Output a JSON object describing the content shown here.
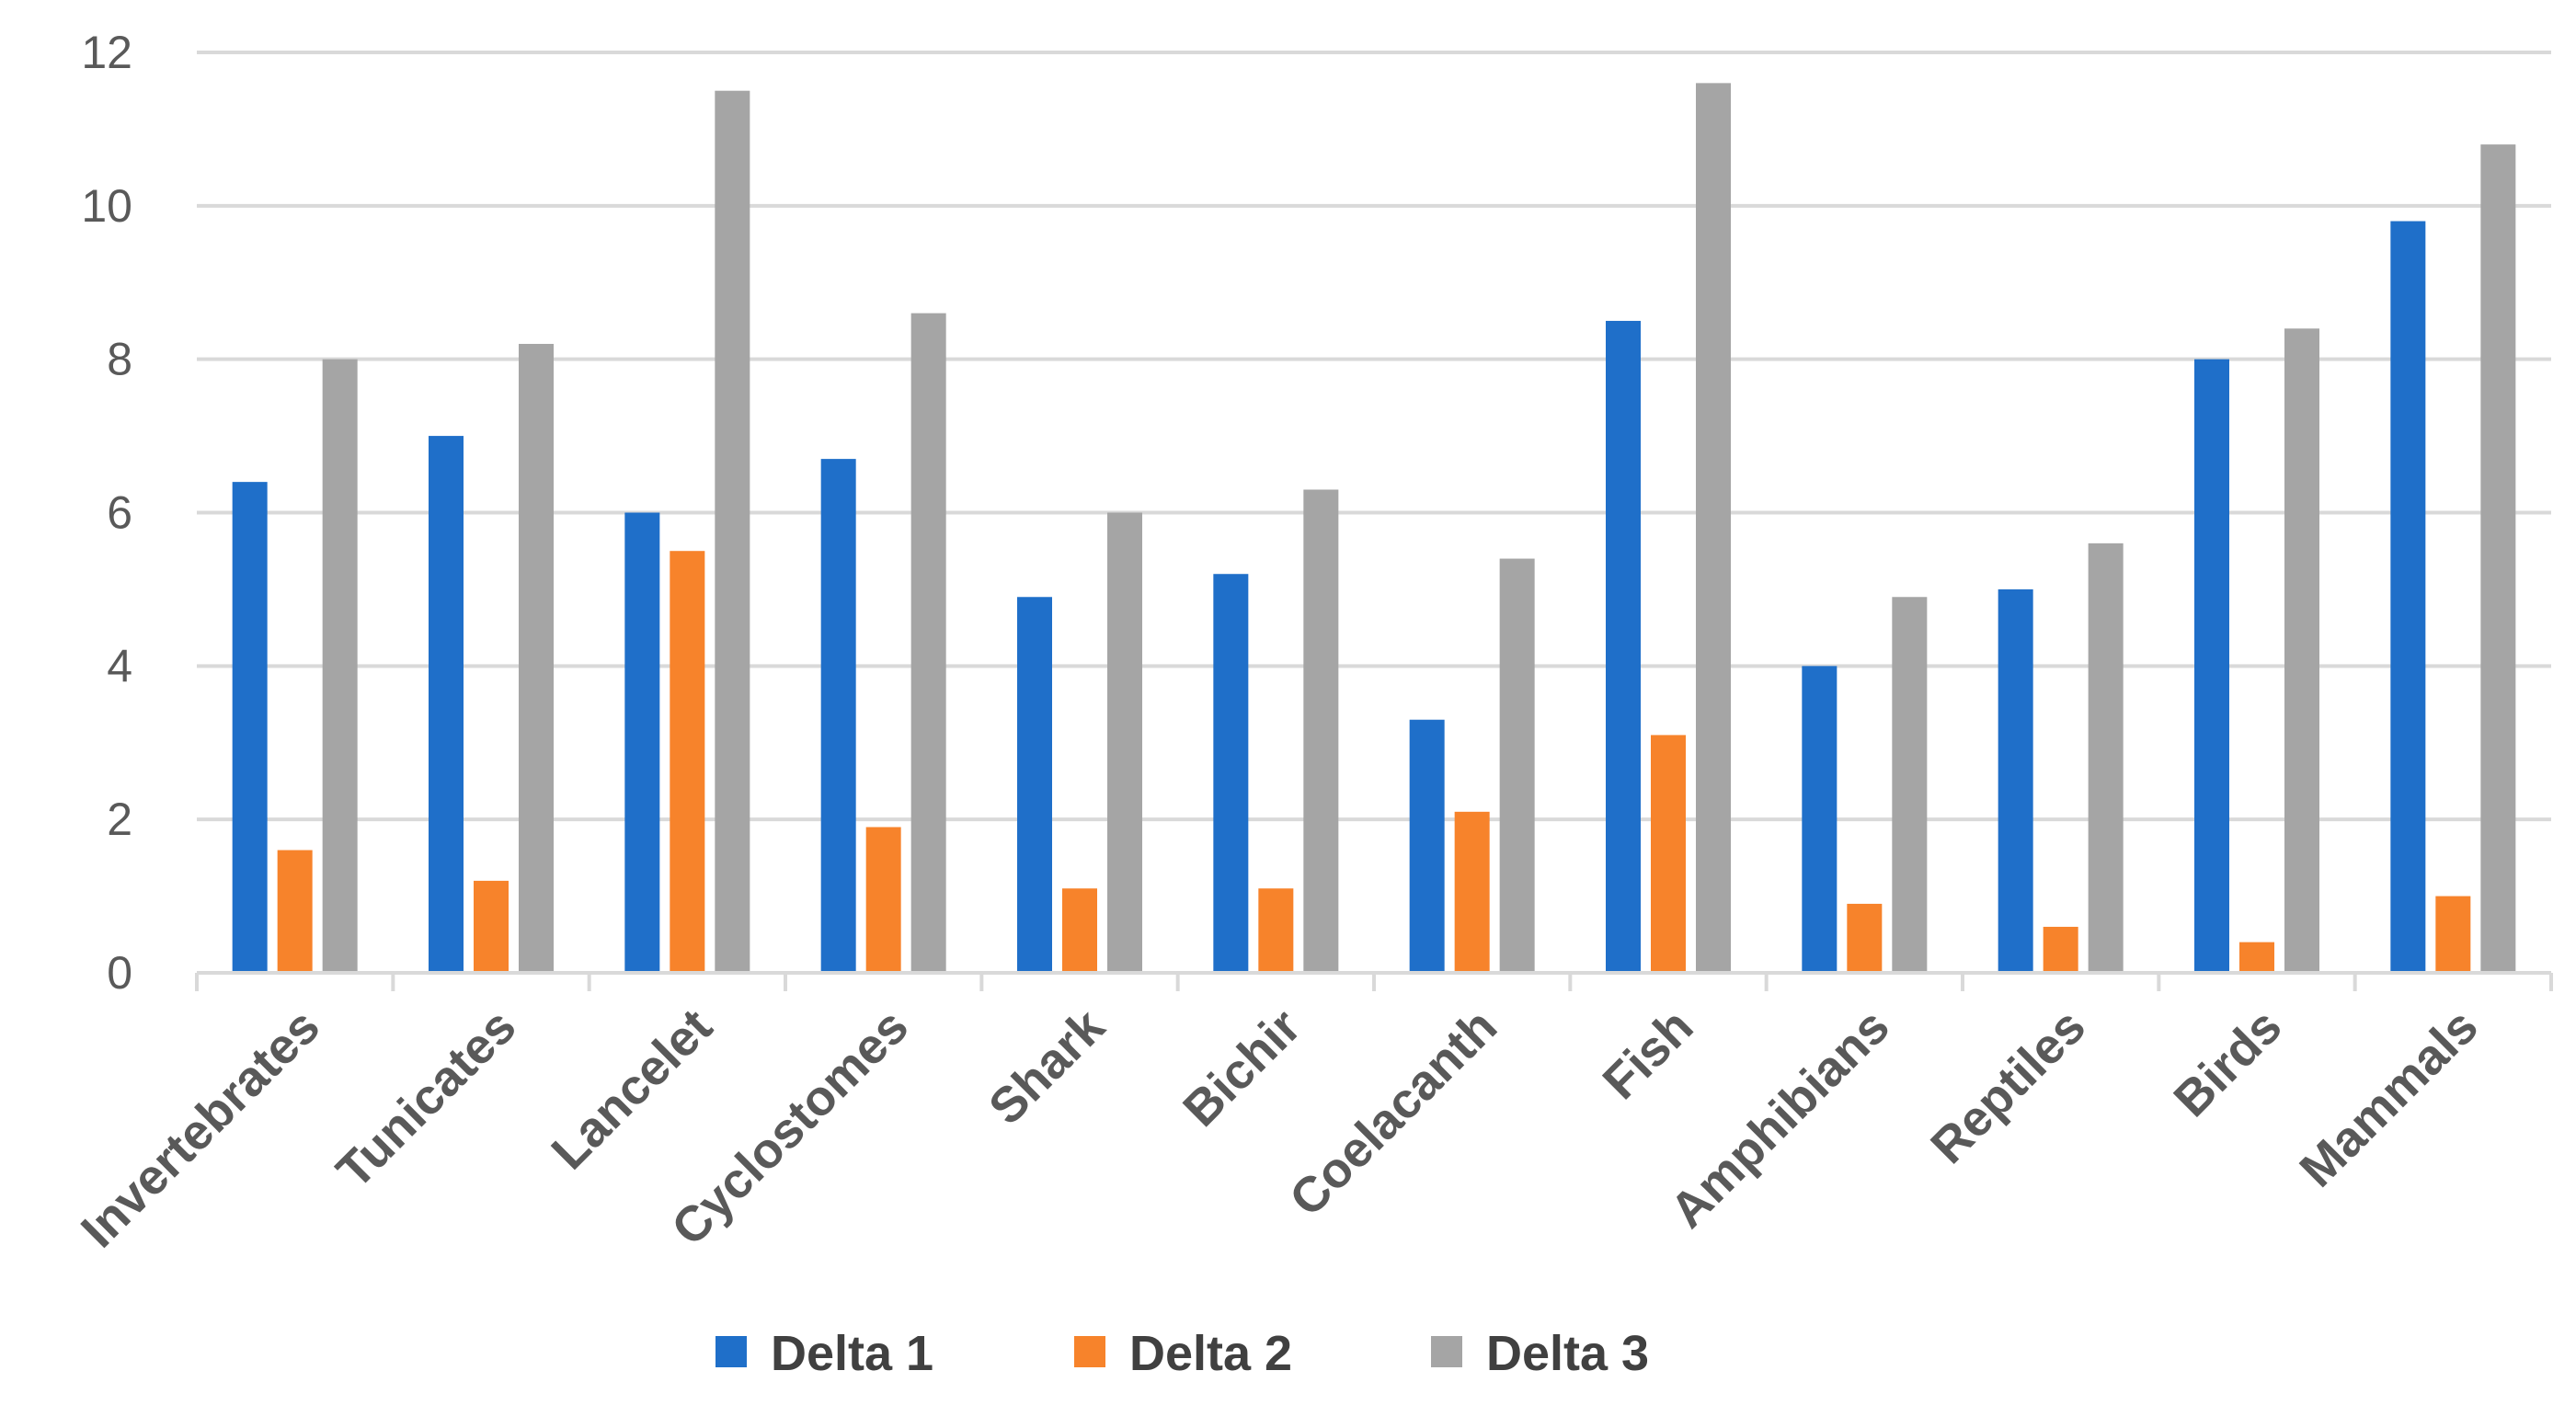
{
  "chart_data": {
    "type": "bar",
    "title": "",
    "xlabel": "",
    "ylabel": "",
    "ylim": [
      0,
      12
    ],
    "yticks": [
      0,
      2,
      4,
      6,
      8,
      10,
      12
    ],
    "grid": true,
    "legend_position": "bottom",
    "categories": [
      "Invertebrates",
      "Tunicates",
      "Lancelet",
      "Cyclostomes",
      "Shark",
      "Bichir",
      "Coelacanth",
      "Fish",
      "Amphibians",
      "Reptiles",
      "Birds",
      "Mammals"
    ],
    "series": [
      {
        "name": "Delta 1",
        "color": "#1f6fc9",
        "values": [
          6.4,
          7.0,
          6.0,
          6.7,
          4.9,
          5.2,
          3.3,
          8.5,
          4.0,
          5.0,
          8.0,
          9.8
        ]
      },
      {
        "name": "Delta 2",
        "color": "#f7832b",
        "values": [
          1.6,
          1.2,
          5.5,
          1.9,
          1.1,
          1.1,
          2.1,
          3.1,
          0.9,
          0.6,
          0.4,
          1.0
        ]
      },
      {
        "name": "Delta 3",
        "color": "#a5a5a5",
        "values": [
          8.0,
          8.2,
          11.5,
          8.6,
          6.0,
          6.3,
          5.4,
          11.6,
          4.9,
          5.6,
          8.4,
          10.8
        ]
      }
    ]
  }
}
